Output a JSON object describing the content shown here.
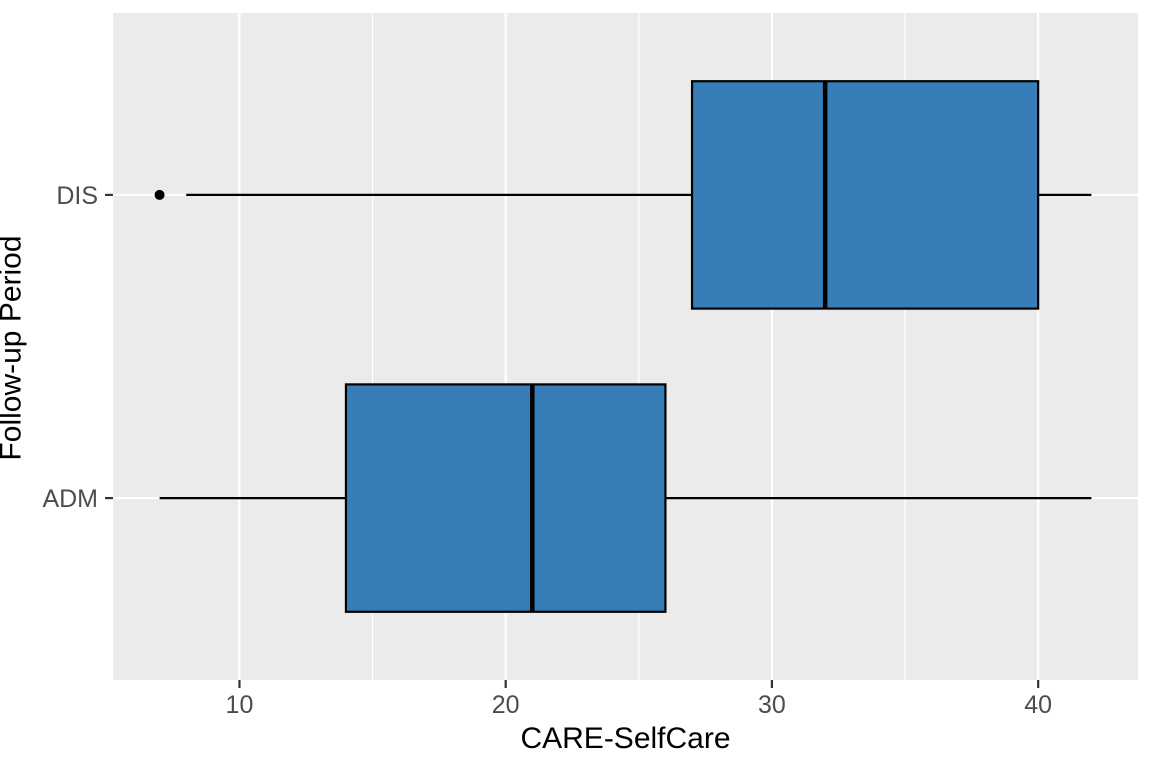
{
  "figure": {
    "background": "#FFFFFF",
    "panel_background": "#EBEBEB",
    "gridline_color": "#FFFFFF",
    "tick_mark_color": "#333333",
    "tick_label_color": "#4D4D4D",
    "axis_title_color": "#000000",
    "outlier_color": "#000000"
  },
  "chart_data": {
    "type": "boxplot",
    "orientation": "horizontal",
    "title": "",
    "xlabel": "CARE-SelfCare",
    "ylabel": "Follow-up Period",
    "x_ticks": [
      10,
      20,
      30,
      40
    ],
    "x_minor_ticks": [
      15,
      25,
      35
    ],
    "xlim": [
      5.25,
      43.75
    ],
    "categories": [
      "DIS",
      "ADM"
    ],
    "category_positions": {
      "DIS": 2,
      "ADM": 1
    },
    "ylim": [
      0.4,
      2.6
    ],
    "box_width": 0.75,
    "grid": true,
    "legend": false,
    "boxes": [
      {
        "category": "DIS",
        "whisker_min": 8,
        "q1": 27,
        "median": 32,
        "q3": 40,
        "whisker_max": 42,
        "outliers": [
          7
        ],
        "fill": "#377EB8",
        "stroke": "#000000"
      },
      {
        "category": "ADM",
        "whisker_min": 7,
        "q1": 14,
        "median": 21,
        "q3": 26,
        "whisker_max": 42,
        "outliers": [],
        "fill": "#377EB8",
        "stroke": "#000000"
      }
    ]
  }
}
